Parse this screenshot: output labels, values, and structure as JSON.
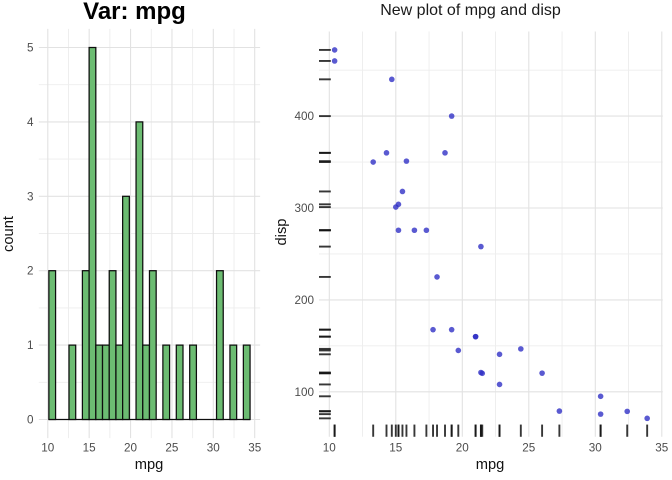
{
  "figure": {
    "background": "#ffffff",
    "grid_major_color": "#e2e2e2",
    "grid_minor_color": "#ededed"
  },
  "chart_data": [
    {
      "type": "bar",
      "subtype": "histogram",
      "title": "Var: mpg",
      "xlabel": "mpg",
      "ylabel": "count",
      "x_ticks": [
        10,
        15,
        20,
        25,
        30,
        35
      ],
      "y_ticks": [
        0,
        1,
        2,
        3,
        4,
        5
      ],
      "xlim": [
        8.914,
        35.655
      ],
      "ylim": [
        -0.25,
        5.25
      ],
      "bin_width": 0.810345,
      "bin_start": 10.12931,
      "bin_counts": [
        2,
        0,
        0,
        1,
        0,
        2,
        5,
        1,
        1,
        2,
        1,
        3,
        0,
        4,
        1,
        2,
        0,
        1,
        0,
        1,
        0,
        1,
        0,
        0,
        0,
        2,
        0,
        1,
        0,
        1
      ],
      "bar_fill": "#6cbc72",
      "bar_stroke": "#0d0d0d",
      "legend": "none",
      "grid": "on"
    },
    {
      "type": "scatter",
      "title": "New plot of mpg and disp",
      "xlabel": "mpg",
      "ylabel": "disp",
      "x_ticks": [
        10,
        15,
        20,
        25,
        30,
        35
      ],
      "y_ticks": [
        100,
        200,
        300,
        400
      ],
      "xlim": [
        9.225,
        35.075
      ],
      "ylim": [
        51.06,
        492.05
      ],
      "x": [
        21.0,
        21.0,
        22.8,
        21.4,
        18.7,
        18.1,
        14.3,
        24.4,
        22.8,
        19.2,
        17.8,
        16.4,
        17.3,
        15.2,
        10.4,
        10.4,
        14.7,
        32.4,
        30.4,
        33.9,
        21.5,
        15.5,
        15.2,
        13.3,
        19.2,
        27.3,
        26.0,
        30.4,
        15.8,
        19.7,
        15.0,
        21.4
      ],
      "y": [
        160,
        160,
        108,
        258,
        360,
        225,
        360,
        146.7,
        140.8,
        167.6,
        167.6,
        275.8,
        275.8,
        275.8,
        472,
        460,
        440,
        78.7,
        75.7,
        71.1,
        120.1,
        318,
        304,
        350,
        400,
        79,
        120.3,
        95.1,
        351,
        145,
        301,
        121
      ],
      "point_color": "#2b2bc4",
      "point_opacity": 0.78,
      "rug": "x and y",
      "rug_color": "#141414",
      "legend": "none",
      "grid": "on"
    }
  ],
  "titles": {
    "left": "Var: mpg",
    "right": "New plot of mpg and disp"
  },
  "axis_labels": {
    "left_x": "mpg",
    "left_y": "count",
    "right_x": "mpg",
    "right_y": "disp"
  }
}
